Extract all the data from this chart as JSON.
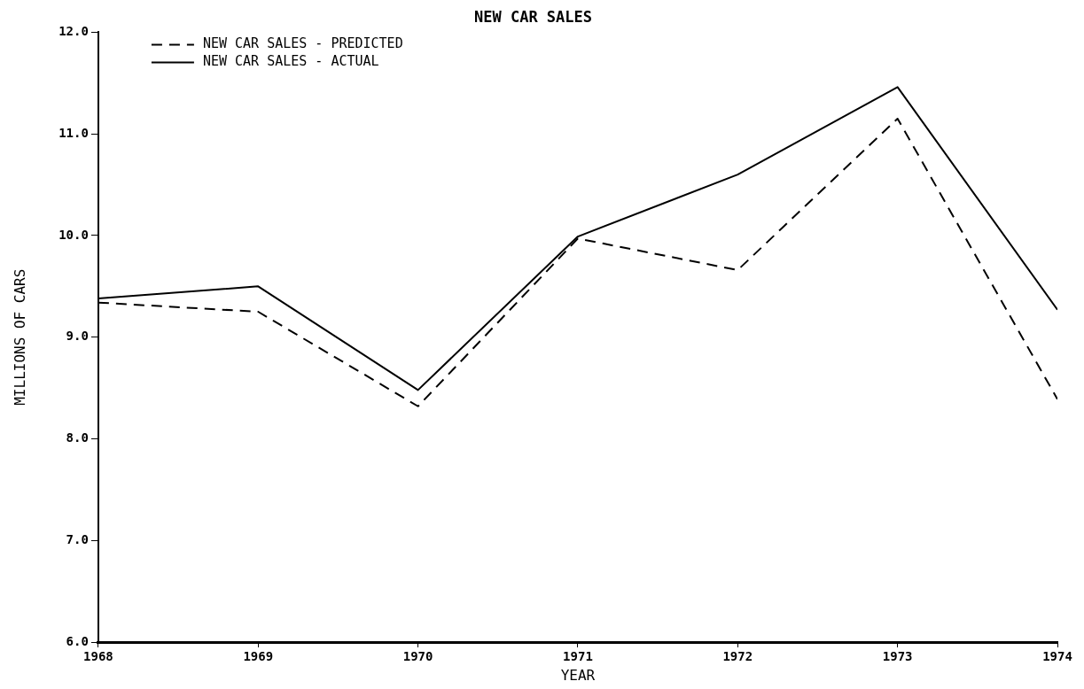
{
  "chart_data": {
    "type": "line",
    "title": "NEW CAR SALES",
    "xlabel": "YEAR",
    "ylabel": "MILLIONS OF CARS",
    "x": [
      1968,
      1969,
      1970,
      1971,
      1972,
      1973,
      1974
    ],
    "xlim": [
      1968,
      1974
    ],
    "xticks": [
      {
        "value": 1968,
        "label": "1968"
      },
      {
        "value": 1969,
        "label": "1969"
      },
      {
        "value": 1970,
        "label": "1970"
      },
      {
        "value": 1971,
        "label": "1971"
      },
      {
        "value": 1972,
        "label": "1972"
      },
      {
        "value": 1973,
        "label": "1973"
      },
      {
        "value": 1974,
        "label": "1974"
      }
    ],
    "ylim": [
      6,
      12
    ],
    "yticks": [
      {
        "value": 6,
        "label": "6.0"
      },
      {
        "value": 7,
        "label": "7.0"
      },
      {
        "value": 8,
        "label": "8.0"
      },
      {
        "value": 9,
        "label": "9.0"
      },
      {
        "value": 10,
        "label": "10.0"
      },
      {
        "value": 11,
        "label": "11.0"
      },
      {
        "value": 12,
        "label": "12.0"
      }
    ],
    "grid": false,
    "legend": "top left",
    "marker": "none",
    "series": [
      {
        "name": "NEW CAR SALES - PREDICTED",
        "color": "#000000",
        "line_style": "dashed",
        "values": [
          9.34,
          9.25,
          8.32,
          9.97,
          9.66,
          11.15,
          8.39
        ]
      },
      {
        "name": "NEW CAR SALES - ACTUAL",
        "color": "#000000",
        "line_style": "solid",
        "values": [
          9.38,
          9.5,
          8.48,
          9.99,
          10.6,
          11.46,
          9.27
        ]
      }
    ]
  }
}
